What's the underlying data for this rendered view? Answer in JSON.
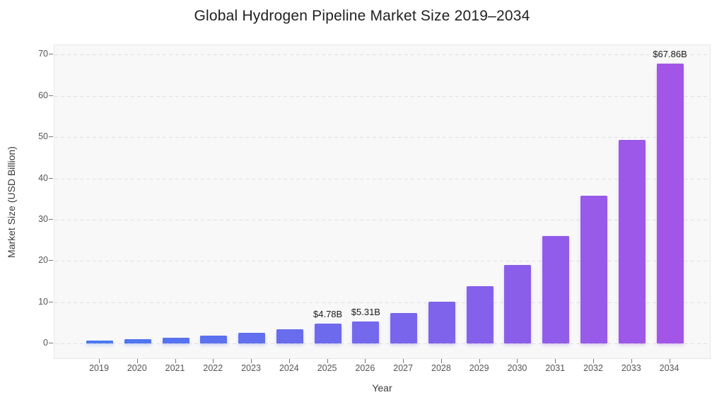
{
  "title": "Global Hydrogen Pipeline Market Size 2019–2034",
  "chart_data": {
    "type": "bar",
    "title": "Global Hydrogen Pipeline Market Size 2019–2034",
    "xlabel": "Year",
    "ylabel": "Market Size (USD Billion)",
    "categories": [
      "2019",
      "2020",
      "2021",
      "2022",
      "2023",
      "2024",
      "2025",
      "2026",
      "2027",
      "2028",
      "2029",
      "2030",
      "2031",
      "2032",
      "2033",
      "2034"
    ],
    "values": [
      0.71,
      0.97,
      1.34,
      1.84,
      2.53,
      3.48,
      4.78,
      5.31,
      7.3,
      10.04,
      13.81,
      18.98,
      26.1,
      35.89,
      49.36,
      67.86
    ],
    "data_labels": [
      {
        "index": 6,
        "text": "$4.78B"
      },
      {
        "index": 7,
        "text": "$5.31B"
      },
      {
        "index": 15,
        "text": "$67.86B"
      }
    ],
    "ylim": [
      0,
      70
    ],
    "yticks": [
      0,
      10,
      20,
      30,
      40,
      50,
      60,
      70
    ],
    "grid": "horizontal-dashed",
    "legend": "none",
    "colors": {
      "bar_gradient_start": "#4a78f0",
      "bar_gradient_end": "#a355e8",
      "plot_background": "#f8f8f8",
      "gridline": "#e0e0e0",
      "tick_label": "#555555",
      "title_text": "#212121",
      "data_label_text": "#1b1b1b"
    }
  }
}
